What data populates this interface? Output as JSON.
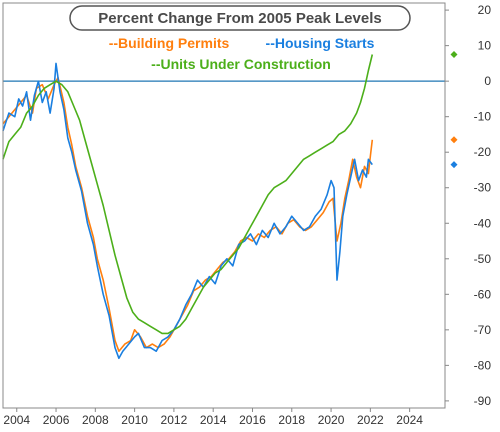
{
  "chart_data": {
    "type": "line",
    "title": "Percent Change From 2005 Peak Levels",
    "legend": {
      "placement": "top-center",
      "entries": [
        {
          "label": "--Building Permits",
          "color": "#ff7f0e"
        },
        {
          "label": "--Housing Starts",
          "color": "#1a7fe0"
        },
        {
          "label": "--Units Under Construction",
          "color": "#4caf1a"
        }
      ]
    },
    "x_axis": {
      "min": 2003.3,
      "max": 2025.8,
      "ticks": [
        2004,
        2006,
        2008,
        2010,
        2012,
        2014,
        2016,
        2018,
        2020,
        2022,
        2024
      ],
      "tick_labels": [
        "2004",
        "2006",
        "2008",
        "2010",
        "2012",
        "2014",
        "2016",
        "2018",
        "2020",
        "2022",
        "2024"
      ]
    },
    "y_axis": {
      "min": -92,
      "max": 22,
      "position": "right",
      "ticks": [
        20,
        10,
        0,
        -10,
        -20,
        -30,
        -40,
        -50,
        -60,
        -70,
        -80,
        -90
      ],
      "tick_labels": [
        "20",
        "10",
        "0",
        "-10",
        "-20",
        "-30",
        "-40",
        "-50",
        "-60",
        "-70",
        "-80",
        "-90"
      ]
    },
    "grid": false,
    "reference_line": {
      "y": 0,
      "color": "#1f77b4"
    },
    "series": [
      {
        "name": "--Building Permits",
        "color": "#ff7f0e",
        "end_marker_value": -16.5,
        "points": [
          [
            2003.3,
            -12
          ],
          [
            2003.6,
            -10
          ],
          [
            2003.9,
            -8
          ],
          [
            2004.2,
            -6
          ],
          [
            2004.5,
            -4
          ],
          [
            2004.8,
            -9
          ],
          [
            2005.0,
            -2
          ],
          [
            2005.3,
            -1
          ],
          [
            2005.6,
            -5
          ],
          [
            2005.9,
            -1
          ],
          [
            2006.1,
            1
          ],
          [
            2006.4,
            -6
          ],
          [
            2006.6,
            -13
          ],
          [
            2006.8,
            -18
          ],
          [
            2007.0,
            -24
          ],
          [
            2007.3,
            -30
          ],
          [
            2007.6,
            -38
          ],
          [
            2007.9,
            -44
          ],
          [
            2008.1,
            -50
          ],
          [
            2008.4,
            -56
          ],
          [
            2008.7,
            -64
          ],
          [
            2009.0,
            -73
          ],
          [
            2009.2,
            -76
          ],
          [
            2009.5,
            -74
          ],
          [
            2009.8,
            -73
          ],
          [
            2010.0,
            -70
          ],
          [
            2010.3,
            -72
          ],
          [
            2010.6,
            -75
          ],
          [
            2010.9,
            -74
          ],
          [
            2011.2,
            -75
          ],
          [
            2011.5,
            -74
          ],
          [
            2011.8,
            -72
          ],
          [
            2012.1,
            -69
          ],
          [
            2012.4,
            -66
          ],
          [
            2012.7,
            -63
          ],
          [
            2013.0,
            -59
          ],
          [
            2013.3,
            -58
          ],
          [
            2013.6,
            -56
          ],
          [
            2013.9,
            -55
          ],
          [
            2014.2,
            -53
          ],
          [
            2014.5,
            -51
          ],
          [
            2014.8,
            -50
          ],
          [
            2015.1,
            -48
          ],
          [
            2015.4,
            -45
          ],
          [
            2015.7,
            -44
          ],
          [
            2016.0,
            -45
          ],
          [
            2016.3,
            -43
          ],
          [
            2016.6,
            -44
          ],
          [
            2016.9,
            -42
          ],
          [
            2017.2,
            -41
          ],
          [
            2017.5,
            -43
          ],
          [
            2017.8,
            -40
          ],
          [
            2018.1,
            -39
          ],
          [
            2018.4,
            -41
          ],
          [
            2018.7,
            -42
          ],
          [
            2019.0,
            -41
          ],
          [
            2019.3,
            -39
          ],
          [
            2019.6,
            -37
          ],
          [
            2019.9,
            -34
          ],
          [
            2020.1,
            -33
          ],
          [
            2020.3,
            -45
          ],
          [
            2020.5,
            -40
          ],
          [
            2020.7,
            -33
          ],
          [
            2020.9,
            -28
          ],
          [
            2021.1,
            -22
          ],
          [
            2021.3,
            -27
          ],
          [
            2021.5,
            -30
          ],
          [
            2021.7,
            -24
          ],
          [
            2021.9,
            -26
          ],
          [
            2022.0,
            -21
          ],
          [
            2022.1,
            -16.5
          ]
        ]
      },
      {
        "name": "--Housing Starts",
        "color": "#1a7fe0",
        "end_marker_value": -23.5,
        "points": [
          [
            2003.3,
            -14
          ],
          [
            2003.6,
            -9
          ],
          [
            2003.9,
            -10
          ],
          [
            2004.1,
            -5
          ],
          [
            2004.3,
            -7
          ],
          [
            2004.5,
            -3
          ],
          [
            2004.7,
            -11
          ],
          [
            2004.9,
            -4
          ],
          [
            2005.1,
            0
          ],
          [
            2005.3,
            -6
          ],
          [
            2005.5,
            -3
          ],
          [
            2005.7,
            -9
          ],
          [
            2005.9,
            -2
          ],
          [
            2006.0,
            5
          ],
          [
            2006.2,
            -3
          ],
          [
            2006.4,
            -8
          ],
          [
            2006.6,
            -16
          ],
          [
            2006.8,
            -20
          ],
          [
            2007.0,
            -25
          ],
          [
            2007.3,
            -31
          ],
          [
            2007.6,
            -40
          ],
          [
            2007.9,
            -46
          ],
          [
            2008.1,
            -52
          ],
          [
            2008.4,
            -60
          ],
          [
            2008.7,
            -66
          ],
          [
            2009.0,
            -75
          ],
          [
            2009.2,
            -78
          ],
          [
            2009.4,
            -76
          ],
          [
            2009.7,
            -74
          ],
          [
            2010.0,
            -72
          ],
          [
            2010.2,
            -71
          ],
          [
            2010.5,
            -75
          ],
          [
            2010.8,
            -75
          ],
          [
            2011.1,
            -76
          ],
          [
            2011.4,
            -73
          ],
          [
            2011.7,
            -72
          ],
          [
            2012.0,
            -70
          ],
          [
            2012.3,
            -67
          ],
          [
            2012.6,
            -63
          ],
          [
            2012.9,
            -60
          ],
          [
            2013.2,
            -56
          ],
          [
            2013.5,
            -58
          ],
          [
            2013.8,
            -55
          ],
          [
            2014.1,
            -57
          ],
          [
            2014.4,
            -52
          ],
          [
            2014.7,
            -50
          ],
          [
            2015.0,
            -52
          ],
          [
            2015.3,
            -46
          ],
          [
            2015.6,
            -45
          ],
          [
            2015.9,
            -43
          ],
          [
            2016.2,
            -46
          ],
          [
            2016.5,
            -42
          ],
          [
            2016.8,
            -44
          ],
          [
            2017.1,
            -40
          ],
          [
            2017.4,
            -43
          ],
          [
            2017.7,
            -41
          ],
          [
            2018.0,
            -38
          ],
          [
            2018.3,
            -40
          ],
          [
            2018.6,
            -42
          ],
          [
            2018.9,
            -41
          ],
          [
            2019.2,
            -38
          ],
          [
            2019.5,
            -36
          ],
          [
            2019.8,
            -32
          ],
          [
            2020.0,
            -28
          ],
          [
            2020.15,
            -30
          ],
          [
            2020.3,
            -56
          ],
          [
            2020.45,
            -48
          ],
          [
            2020.6,
            -38
          ],
          [
            2020.8,
            -32
          ],
          [
            2021.0,
            -27
          ],
          [
            2021.2,
            -22
          ],
          [
            2021.4,
            -28
          ],
          [
            2021.6,
            -25
          ],
          [
            2021.8,
            -27
          ],
          [
            2021.9,
            -22
          ],
          [
            2022.1,
            -23.5
          ]
        ]
      },
      {
        "name": "--Units Under Construction",
        "color": "#4caf1a",
        "end_marker_value": 7.5,
        "points": [
          [
            2003.3,
            -22
          ],
          [
            2003.6,
            -17
          ],
          [
            2003.9,
            -15
          ],
          [
            2004.2,
            -13
          ],
          [
            2004.5,
            -9
          ],
          [
            2004.8,
            -7
          ],
          [
            2005.1,
            -4
          ],
          [
            2005.4,
            -2
          ],
          [
            2005.7,
            -1
          ],
          [
            2006.0,
            0
          ],
          [
            2006.3,
            -1
          ],
          [
            2006.6,
            -3
          ],
          [
            2006.9,
            -7
          ],
          [
            2007.2,
            -11
          ],
          [
            2007.5,
            -17
          ],
          [
            2007.8,
            -23
          ],
          [
            2008.1,
            -29
          ],
          [
            2008.4,
            -35
          ],
          [
            2008.7,
            -42
          ],
          [
            2009.0,
            -49
          ],
          [
            2009.3,
            -55
          ],
          [
            2009.6,
            -61
          ],
          [
            2009.9,
            -65
          ],
          [
            2010.2,
            -67
          ],
          [
            2010.5,
            -68
          ],
          [
            2010.8,
            -69
          ],
          [
            2011.1,
            -70
          ],
          [
            2011.4,
            -71
          ],
          [
            2011.7,
            -71
          ],
          [
            2012.0,
            -70
          ],
          [
            2012.3,
            -69
          ],
          [
            2012.6,
            -67
          ],
          [
            2012.9,
            -64
          ],
          [
            2013.2,
            -61
          ],
          [
            2013.5,
            -58
          ],
          [
            2013.8,
            -56
          ],
          [
            2014.1,
            -54
          ],
          [
            2014.4,
            -53
          ],
          [
            2014.7,
            -51
          ],
          [
            2015.0,
            -49
          ],
          [
            2015.3,
            -47
          ],
          [
            2015.6,
            -44
          ],
          [
            2015.9,
            -41
          ],
          [
            2016.2,
            -38
          ],
          [
            2016.5,
            -35
          ],
          [
            2016.8,
            -32
          ],
          [
            2017.1,
            -30
          ],
          [
            2017.4,
            -29
          ],
          [
            2017.7,
            -28
          ],
          [
            2018.0,
            -26
          ],
          [
            2018.3,
            -24
          ],
          [
            2018.6,
            -22
          ],
          [
            2018.9,
            -21
          ],
          [
            2019.2,
            -20
          ],
          [
            2019.5,
            -19
          ],
          [
            2019.8,
            -18
          ],
          [
            2020.1,
            -17
          ],
          [
            2020.4,
            -15
          ],
          [
            2020.7,
            -14
          ],
          [
            2021.0,
            -12
          ],
          [
            2021.3,
            -9
          ],
          [
            2021.5,
            -6
          ],
          [
            2021.7,
            -2
          ],
          [
            2021.9,
            3
          ],
          [
            2022.1,
            7.5
          ]
        ]
      }
    ]
  }
}
